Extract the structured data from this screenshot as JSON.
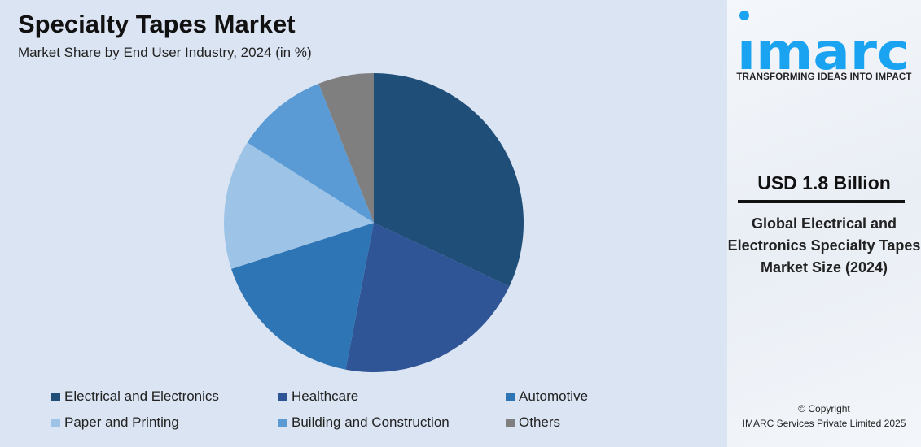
{
  "chart_data": {
    "type": "pie",
    "title": "Specialty Tapes Market",
    "subtitle": "Market Share by End User Industry, 2024 (in %)",
    "categories": [
      "Electrical and Electronics",
      "Healthcare",
      "Automotive",
      "Paper and Printing",
      "Building and Construction",
      "Others"
    ],
    "values": [
      32,
      21,
      17,
      14,
      10,
      6
    ],
    "colors": [
      "#1f4e79",
      "#2f5597",
      "#2e75b6",
      "#9dc3e6",
      "#5b9bd5",
      "#7f7f7f"
    ],
    "legend_position": "bottom"
  },
  "sidebar": {
    "logo_text": "imarc",
    "tagline": "TRANSFORMING IDEAS INTO IMPACT",
    "value": "USD 1.8 Billion",
    "description": "Global Electrical and Electronics Specialty Tapes Market Size (2024)",
    "copyright_line1": "© Copyright",
    "copyright_line2": "IMARC Services Private Limited 2025",
    "brand_color": "#1aa3f0"
  }
}
